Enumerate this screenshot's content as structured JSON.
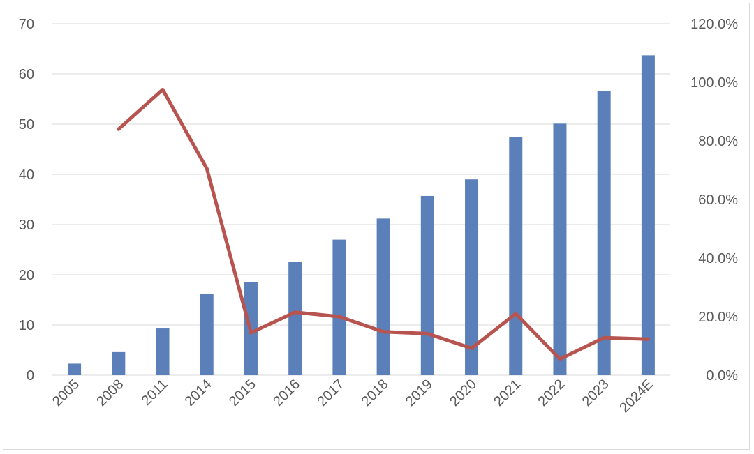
{
  "chart_data": {
    "type": "bar",
    "title": "",
    "xlabel": "",
    "ylabel": "",
    "categories": [
      "2005",
      "2008",
      "2011",
      "2014",
      "2015",
      "2016",
      "2017",
      "2018",
      "2019",
      "2020",
      "2021",
      "2022",
      "2023",
      "2024E"
    ],
    "series": [
      {
        "type": "bar",
        "axis": "left",
        "color": "#5b80b9",
        "values": [
          2.3,
          4.6,
          9.3,
          16.2,
          18.5,
          22.5,
          27.0,
          31.2,
          35.7,
          39.0,
          47.5,
          50.1,
          56.6,
          63.7
        ]
      },
      {
        "type": "line",
        "axis": "right",
        "color": "#b85450",
        "values": [
          null,
          84.0,
          97.5,
          70.5,
          14.5,
          21.5,
          20.0,
          14.8,
          14.2,
          9.2,
          21.0,
          5.5,
          12.8,
          12.3
        ]
      }
    ],
    "ylim": [
      0,
      70
    ],
    "y_ticks": [
      "0",
      "10",
      "20",
      "30",
      "40",
      "50",
      "60",
      "70"
    ],
    "y2lim": [
      0,
      120
    ],
    "y2_ticks": [
      "0.0%",
      "20.0%",
      "40.0%",
      "60.0%",
      "80.0%",
      "100.0%",
      "120.0%"
    ],
    "grid": true,
    "legend": "none"
  }
}
